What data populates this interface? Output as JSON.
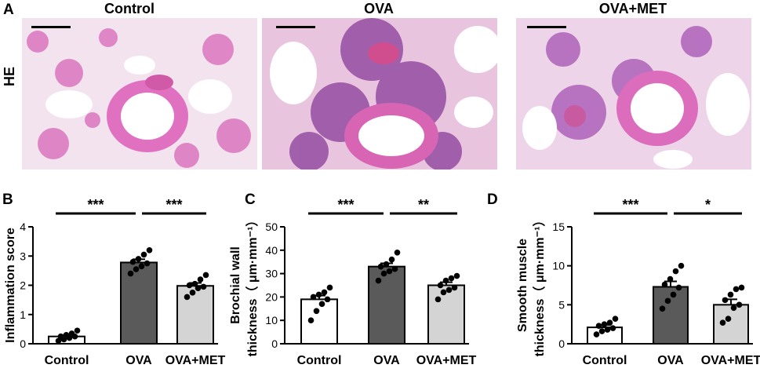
{
  "panel_a": {
    "label": "A",
    "row_label": "HE",
    "titles": [
      "Control",
      "OVA",
      "OVA+MET"
    ]
  },
  "chart_data": [
    {
      "panel": "B",
      "type": "bar",
      "ylabel": "Inflammation score",
      "categories": [
        "Control",
        "OVA",
        "OVA+MET"
      ],
      "ylim": [
        0,
        4
      ],
      "yticks": [
        0,
        1,
        2,
        3,
        4
      ],
      "values": [
        0.25,
        2.78,
        1.98
      ],
      "sem": [
        0.05,
        0.11,
        0.1
      ],
      "points": [
        [
          0.1,
          0.15,
          0.2,
          0.25,
          0.25,
          0.3,
          0.35,
          0.45
        ],
        [
          2.4,
          2.55,
          2.65,
          2.75,
          2.8,
          2.9,
          3.05,
          3.2
        ],
        [
          1.6,
          1.75,
          1.9,
          1.95,
          2.0,
          2.05,
          2.2,
          2.35
        ]
      ],
      "bar_colors": [
        "#ffffff",
        "#5a5a5a",
        "#d4d4d4"
      ],
      "significance": [
        {
          "from": 0,
          "to": 1,
          "label": "***"
        },
        {
          "from": 1,
          "to": 2,
          "label": "***"
        }
      ]
    },
    {
      "panel": "C",
      "type": "bar",
      "ylabel": "Brochial wall thickness（μm·mm⁻¹）",
      "ylabel_lines": [
        "Brochial wall",
        "thickness（ μm·mm⁻¹）"
      ],
      "categories": [
        "Control",
        "OVA",
        "OVA+MET"
      ],
      "ylim": [
        0,
        50
      ],
      "yticks": [
        0,
        10,
        20,
        30,
        40,
        50
      ],
      "values": [
        19,
        33,
        25
      ],
      "sem": [
        1.6,
        1.4,
        1.3
      ],
      "points": [
        [
          10,
          14,
          17,
          19,
          20,
          21,
          22,
          24
        ],
        [
          27,
          30,
          31,
          32,
          33,
          34,
          36,
          39
        ],
        [
          19,
          22,
          23,
          24,
          25,
          27,
          28,
          29
        ]
      ],
      "bar_colors": [
        "#ffffff",
        "#5a5a5a",
        "#d4d4d4"
      ],
      "significance": [
        {
          "from": 0,
          "to": 1,
          "label": "***"
        },
        {
          "from": 1,
          "to": 2,
          "label": "**"
        }
      ]
    },
    {
      "panel": "D",
      "type": "bar",
      "ylabel": "Smooth muscle thickness（μm·mm⁻¹）",
      "ylabel_lines": [
        "Smooth muscle",
        "thickness（ μm·mm⁻¹）"
      ],
      "categories": [
        "Control",
        "OVA",
        "OVA+MET"
      ],
      "ylim": [
        0,
        15
      ],
      "yticks": [
        0,
        5,
        10,
        15
      ],
      "values": [
        2.1,
        7.3,
        5.0
      ],
      "sem": [
        0.3,
        0.7,
        0.7
      ],
      "points": [
        [
          1.2,
          1.6,
          1.8,
          2.0,
          2.3,
          2.5,
          2.7,
          3.2
        ],
        [
          4.5,
          5.5,
          6.3,
          7.2,
          7.6,
          8.3,
          9.3,
          10.0
        ],
        [
          2.7,
          3.2,
          4.6,
          5.0,
          5.6,
          6.3,
          7.0,
          7.2
        ]
      ],
      "bar_colors": [
        "#ffffff",
        "#5a5a5a",
        "#d4d4d4"
      ],
      "significance": [
        {
          "from": 0,
          "to": 1,
          "label": "***"
        },
        {
          "from": 1,
          "to": 2,
          "label": "*"
        }
      ]
    }
  ]
}
